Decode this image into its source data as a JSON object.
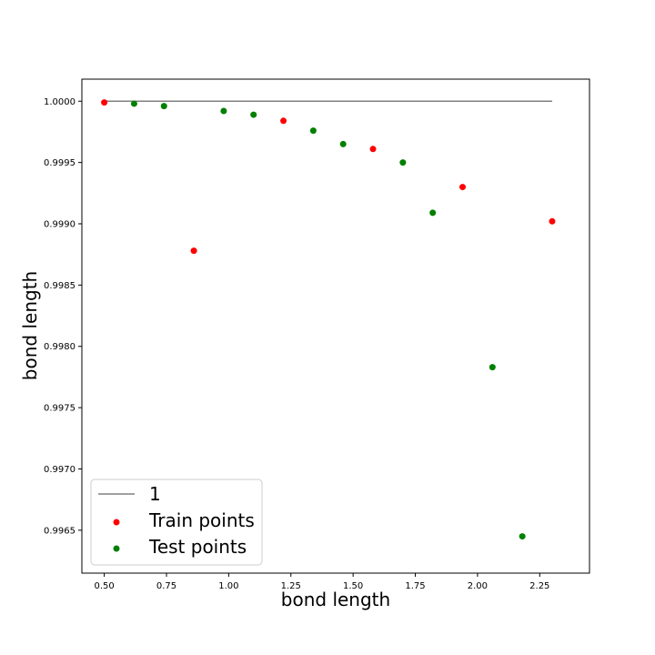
{
  "chart_data": {
    "type": "scatter",
    "title": "",
    "xlabel": "bond length",
    "ylabel": "bond length",
    "xlim": [
      0.41,
      2.45
    ],
    "ylim": [
      0.99615,
      1.00018
    ],
    "xticks": [
      0.5,
      0.75,
      1.0,
      1.25,
      1.5,
      1.75,
      2.0,
      2.25
    ],
    "xtick_labels": [
      "0.50",
      "0.75",
      "1.00",
      "1.25",
      "1.50",
      "1.75",
      "2.00",
      "2.25"
    ],
    "yticks": [
      0.9965,
      0.997,
      0.9975,
      0.998,
      0.9985,
      0.999,
      0.9995,
      1.0
    ],
    "ytick_labels": [
      "0.9965",
      "0.9970",
      "0.9975",
      "0.9980",
      "0.9985",
      "0.9990",
      "0.9995",
      "1.0000"
    ],
    "grid": false,
    "legend_position": "lower-left",
    "series": [
      {
        "name": "1",
        "kind": "line",
        "color": "#808080",
        "x": [
          0.5,
          2.3
        ],
        "y": [
          1.0,
          1.0
        ]
      },
      {
        "name": "Train points",
        "kind": "scatter",
        "color": "#ff0000",
        "x": [
          0.5,
          0.86,
          1.22,
          1.58,
          1.94,
          2.3
        ],
        "y": [
          0.99999,
          0.99878,
          0.99984,
          0.99961,
          0.9993,
          0.99902
        ]
      },
      {
        "name": "Test points",
        "kind": "scatter",
        "color": "#008000",
        "x": [
          0.62,
          0.74,
          0.98,
          1.1,
          1.34,
          1.46,
          1.7,
          1.82,
          2.06,
          2.18
        ],
        "y": [
          0.99998,
          0.99996,
          0.99992,
          0.99989,
          0.99976,
          0.99965,
          0.9995,
          0.99909,
          0.99783,
          0.99645
        ]
      }
    ]
  }
}
